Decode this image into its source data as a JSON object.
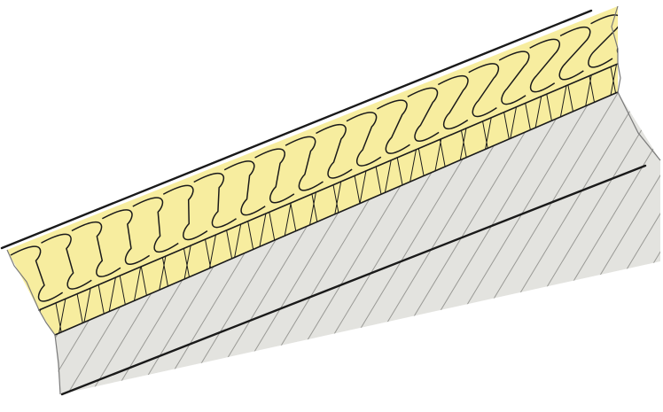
{
  "diagram": {
    "kind": "building-section-detail",
    "layers": [
      {
        "id": "insulation-batts",
        "pattern": "batt-insulation",
        "fill_color": "#f7ed9f",
        "line_color": "#1a1a1a"
      },
      {
        "id": "insulation-board",
        "pattern": "cross-hatch",
        "fill_color": "#f7ed9f",
        "line_color": "#1a1a1a"
      },
      {
        "id": "substrate",
        "pattern": "diagonal-hatch",
        "fill_color": "#e3e3df",
        "line_color": "#9a9a96"
      }
    ],
    "outline_color": "#1a1a1a",
    "break_line_color": "#7a7a7a"
  }
}
